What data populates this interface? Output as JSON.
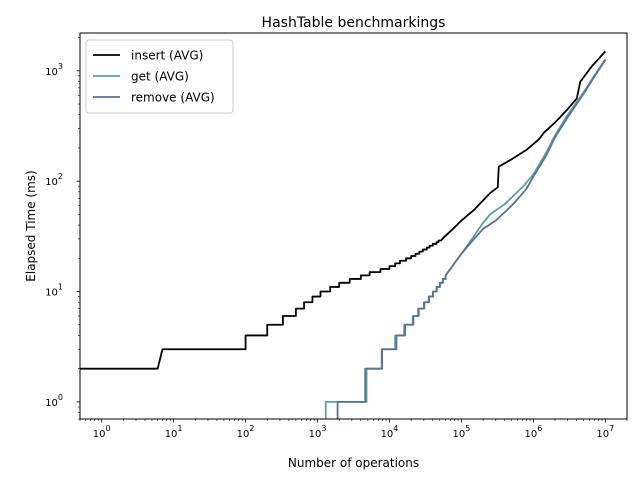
{
  "chart_data": {
    "type": "line",
    "title": "HashTable benchmarkings",
    "xlabel": "Number of operations",
    "ylabel": "Elapsed Time (ms)",
    "xscale": "log",
    "yscale": "log",
    "xlim": [
      0.5,
      20000000
    ],
    "ylim": [
      0.7,
      2200
    ],
    "x_ticks": [
      {
        "value": 1,
        "base": "10",
        "exp": "0"
      },
      {
        "value": 10,
        "base": "10",
        "exp": "1"
      },
      {
        "value": 100,
        "base": "10",
        "exp": "2"
      },
      {
        "value": 1000,
        "base": "10",
        "exp": "3"
      },
      {
        "value": 10000,
        "base": "10",
        "exp": "4"
      },
      {
        "value": 100000,
        "base": "10",
        "exp": "5"
      },
      {
        "value": 1000000,
        "base": "10",
        "exp": "6"
      },
      {
        "value": 10000000,
        "base": "10",
        "exp": "7"
      }
    ],
    "y_ticks": [
      {
        "value": 1,
        "base": "10",
        "exp": "0"
      },
      {
        "value": 10,
        "base": "10",
        "exp": "1"
      },
      {
        "value": 100,
        "base": "10",
        "exp": "2"
      },
      {
        "value": 1000,
        "base": "10",
        "exp": "3"
      }
    ],
    "grid": false,
    "legend_position": "top-left",
    "series": [
      {
        "name": "insert (AVG)",
        "color": "#000000",
        "points": [
          [
            0.5,
            2
          ],
          [
            6,
            2
          ],
          [
            7,
            3
          ],
          [
            100,
            3
          ],
          [
            100,
            4
          ],
          [
            200,
            4
          ],
          [
            200,
            5
          ],
          [
            330,
            5
          ],
          [
            330,
            6
          ],
          [
            500,
            6
          ],
          [
            500,
            7
          ],
          [
            650,
            7
          ],
          [
            650,
            8
          ],
          [
            850,
            8
          ],
          [
            850,
            9
          ],
          [
            1100,
            9
          ],
          [
            1100,
            10
          ],
          [
            1500,
            10
          ],
          [
            1500,
            11
          ],
          [
            2000,
            11
          ],
          [
            2000,
            12
          ],
          [
            2800,
            12
          ],
          [
            2800,
            13
          ],
          [
            4000,
            13
          ],
          [
            4000,
            14
          ],
          [
            5300,
            14
          ],
          [
            5300,
            15
          ],
          [
            7500,
            15
          ],
          [
            7500,
            16
          ],
          [
            10000,
            16
          ],
          [
            10000,
            17
          ],
          [
            12000,
            17
          ],
          [
            12000,
            18
          ],
          [
            14000,
            18
          ],
          [
            14000,
            19
          ],
          [
            17000,
            19
          ],
          [
            17000,
            20
          ],
          [
            20000,
            20
          ],
          [
            20000,
            21
          ],
          [
            23000,
            21
          ],
          [
            23000,
            22
          ],
          [
            26000,
            22
          ],
          [
            26000,
            23
          ],
          [
            29000,
            23
          ],
          [
            29000,
            24
          ],
          [
            33000,
            24
          ],
          [
            33000,
            25
          ],
          [
            36000,
            25
          ],
          [
            36000,
            26
          ],
          [
            40000,
            26
          ],
          [
            40000,
            27
          ],
          [
            45000,
            27
          ],
          [
            45000,
            28
          ],
          [
            48000,
            28
          ],
          [
            48000,
            29
          ],
          [
            52000,
            29
          ],
          [
            60000,
            32
          ],
          [
            80000,
            38
          ],
          [
            100000,
            44
          ],
          [
            150000,
            55
          ],
          [
            200000,
            67
          ],
          [
            250000,
            78
          ],
          [
            320000,
            88
          ],
          [
            330000,
            135
          ],
          [
            500000,
            158
          ],
          [
            800000,
            192
          ],
          [
            1200000,
            240
          ],
          [
            1400000,
            275
          ],
          [
            2000000,
            340
          ],
          [
            3000000,
            450
          ],
          [
            4000000,
            560
          ],
          [
            4500000,
            800
          ],
          [
            5500000,
            950
          ],
          [
            6500000,
            1100
          ],
          [
            10000000,
            1500
          ]
        ]
      },
      {
        "name": "get (AVG)",
        "color": "#5f9ea0",
        "points": [
          [
            1300,
            0.5
          ],
          [
            1300,
            1
          ],
          [
            4800,
            1
          ],
          [
            4800,
            2
          ],
          [
            7800,
            2
          ],
          [
            7800,
            3
          ],
          [
            12000,
            3
          ],
          [
            12000,
            4
          ],
          [
            16000,
            4
          ],
          [
            16000,
            5
          ],
          [
            21000,
            5
          ],
          [
            21000,
            6
          ],
          [
            25000,
            6
          ],
          [
            25000,
            7
          ],
          [
            30000,
            7
          ],
          [
            30000,
            8
          ],
          [
            35000,
            8
          ],
          [
            35000,
            9
          ],
          [
            40000,
            9
          ],
          [
            40000,
            10
          ],
          [
            45000,
            10
          ],
          [
            45000,
            11
          ],
          [
            50000,
            11
          ],
          [
            50000,
            12
          ],
          [
            55000,
            12
          ],
          [
            55000,
            13
          ],
          [
            60000,
            13
          ],
          [
            60000,
            14
          ],
          [
            70000,
            16
          ],
          [
            100000,
            22
          ],
          [
            150000,
            32
          ],
          [
            200000,
            42
          ],
          [
            250000,
            50
          ],
          [
            400000,
            62
          ],
          [
            700000,
            88
          ],
          [
            1000000,
            115
          ],
          [
            1500000,
            180
          ],
          [
            2000000,
            260
          ],
          [
            3000000,
            400
          ],
          [
            5000000,
            640
          ],
          [
            7000000,
            900
          ],
          [
            10000000,
            1270
          ]
        ]
      },
      {
        "name": "remove (AVG)",
        "color": "#5a7394",
        "points": [
          [
            1900,
            0.5
          ],
          [
            1900,
            1
          ],
          [
            4600,
            1
          ],
          [
            4600,
            2
          ],
          [
            7900,
            2
          ],
          [
            7900,
            3
          ],
          [
            12500,
            3
          ],
          [
            12500,
            4
          ],
          [
            16500,
            4
          ],
          [
            16500,
            5
          ],
          [
            21500,
            5
          ],
          [
            21500,
            6
          ],
          [
            25500,
            6
          ],
          [
            25500,
            7
          ],
          [
            30500,
            7
          ],
          [
            30500,
            8
          ],
          [
            35500,
            8
          ],
          [
            35500,
            9
          ],
          [
            40500,
            9
          ],
          [
            40500,
            10
          ],
          [
            45500,
            10
          ],
          [
            45500,
            11
          ],
          [
            50500,
            11
          ],
          [
            50500,
            12
          ],
          [
            55500,
            12
          ],
          [
            55500,
            13
          ],
          [
            60500,
            13
          ],
          [
            60500,
            14
          ],
          [
            70000,
            16
          ],
          [
            100000,
            22
          ],
          [
            150000,
            30
          ],
          [
            200000,
            37
          ],
          [
            300000,
            44
          ],
          [
            500000,
            60
          ],
          [
            800000,
            85
          ],
          [
            1000000,
            110
          ],
          [
            1500000,
            170
          ],
          [
            2000000,
            250
          ],
          [
            3000000,
            380
          ],
          [
            5000000,
            620
          ],
          [
            7000000,
            880
          ],
          [
            10000000,
            1250
          ]
        ]
      }
    ]
  }
}
